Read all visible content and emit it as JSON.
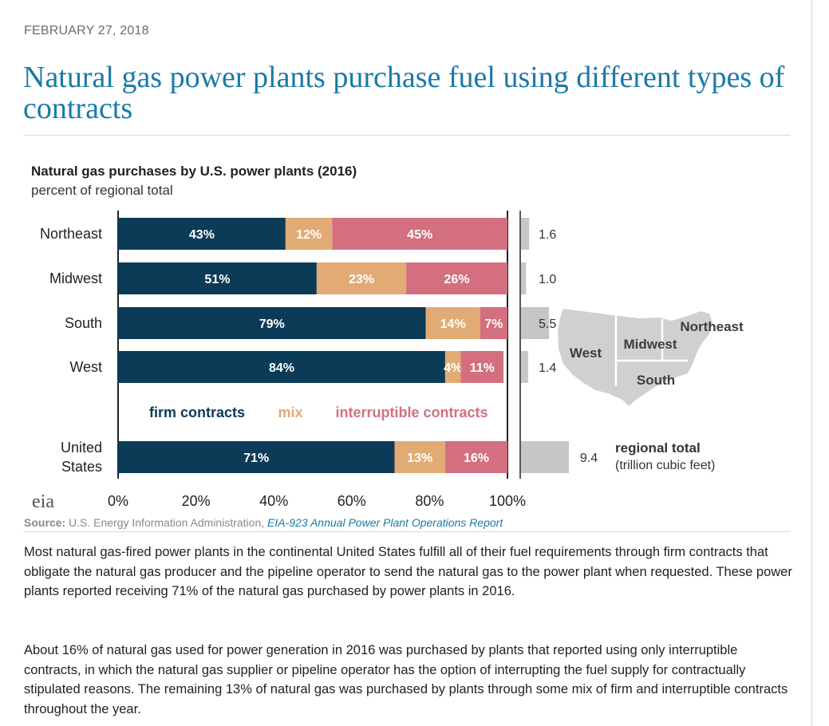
{
  "article": {
    "date": "FEBRUARY 27, 2018",
    "title": "Natural gas power plants purchase fuel using different types of contracts",
    "paragraphs": [
      "Most natural gas-fired power plants in the continental United States fulfill all of their fuel requirements through firm contracts that obligate the natural gas producer and the pipeline operator to send the natural gas to the power plant when requested. These power plants reported receiving 71% of the natural gas purchased by power plants in 2016.",
      "About 16% of natural gas used for power generation in 2016 was purchased by plants that reported using only interruptible contracts, in which the natural gas supplier or pipeline operator has the option of interrupting the fuel supply for contractually stipulated reasons. The remaining 13% of natural gas was purchased by plants through some mix of firm and interruptible contracts throughout the year."
    ]
  },
  "source": {
    "label": "Source:",
    "text": " U.S. Energy Information Administration, ",
    "link": "EIA-923 Annual Power Plant Operations Report"
  },
  "logo_text": "eia",
  "map": {
    "labels": [
      "West",
      "Midwest",
      "Northeast",
      "South"
    ],
    "color": "#d0d0d0"
  },
  "chart_data": {
    "type": "bar",
    "orientation": "horizontal-stacked",
    "title": "Natural gas purchases by U.S. power plants (2016)",
    "subtitle": "percent of regional total",
    "categories": [
      "Northeast",
      "Midwest",
      "South",
      "West",
      "United States"
    ],
    "series": [
      {
        "name": "firm contracts",
        "color": "#0b3b57",
        "label_color": "#ffffff",
        "values": [
          43,
          51,
          79,
          84,
          71
        ]
      },
      {
        "name": "mix",
        "color": "#e2ab75",
        "label_color": "#ffffff",
        "values": [
          12,
          23,
          14,
          4,
          13
        ]
      },
      {
        "name": "interruptible contracts",
        "color": "#d36f7f",
        "label_color": "#ffffff",
        "values": [
          45,
          26,
          7,
          11,
          16
        ]
      }
    ],
    "x_ticks": [
      "0%",
      "20%",
      "40%",
      "60%",
      "80%",
      "100%"
    ],
    "xlim": [
      0,
      100
    ],
    "totals": {
      "label": "regional total",
      "unit": "(trillion cubic feet)",
      "values": [
        1.6,
        1.0,
        5.5,
        1.4,
        9.4
      ],
      "display": [
        "1.6",
        "1.0",
        "5.5",
        "1.4",
        "9.4"
      ],
      "max": 9.4,
      "color": "#c6c6c6"
    }
  }
}
